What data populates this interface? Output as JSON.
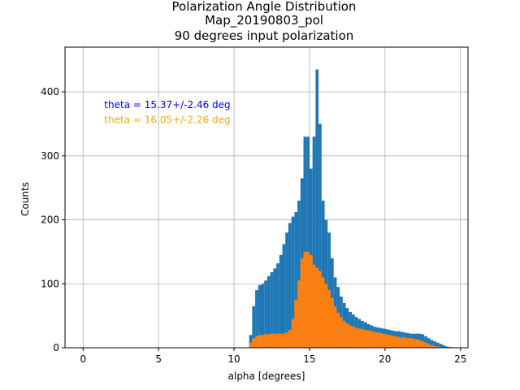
{
  "chart_data": {
    "type": "bar",
    "title_lines": [
      "Polarization Angle Distribution",
      "Map_20190803_pol",
      "90 degrees input polarization"
    ],
    "xlabel": "alpha [degrees]",
    "ylabel": "Counts",
    "xlim": [
      -1.2,
      25.5
    ],
    "ylim": [
      0,
      470
    ],
    "xticks": [
      0,
      5,
      10,
      15,
      20,
      25
    ],
    "yticks": [
      0,
      100,
      200,
      300,
      400
    ],
    "grid": true,
    "bin_width": 0.1,
    "annotations": [
      {
        "text": "theta = 15.37+/-2.46 deg",
        "color": "#0000ff",
        "x": 1.4,
        "y": 375
      },
      {
        "text": "theta = 16.05+/-2.26 deg",
        "color": "#ffa500",
        "x": 1.4,
        "y": 351
      }
    ],
    "series": [
      {
        "color": "#1f77b4",
        "points": [
          [
            11.1,
            20
          ],
          [
            11.3,
            65
          ],
          [
            11.5,
            90
          ],
          [
            11.7,
            98
          ],
          [
            11.9,
            100
          ],
          [
            12.1,
            105
          ],
          [
            12.3,
            112
          ],
          [
            12.5,
            118
          ],
          [
            12.7,
            124
          ],
          [
            12.9,
            132
          ],
          [
            13.1,
            145
          ],
          [
            13.3,
            162
          ],
          [
            13.5,
            180
          ],
          [
            13.7,
            195
          ],
          [
            13.9,
            205
          ],
          [
            14.1,
            212
          ],
          [
            14.3,
            230
          ],
          [
            14.5,
            265
          ],
          [
            14.7,
            330
          ],
          [
            14.9,
            330
          ],
          [
            15.1,
            280
          ],
          [
            15.3,
            330
          ],
          [
            15.5,
            435
          ],
          [
            15.7,
            350
          ],
          [
            15.9,
            230
          ],
          [
            16.1,
            200
          ],
          [
            16.3,
            180
          ],
          [
            16.5,
            140
          ],
          [
            16.7,
            110
          ],
          [
            16.9,
            95
          ],
          [
            17.1,
            80
          ],
          [
            17.3,
            70
          ],
          [
            17.5,
            62
          ],
          [
            17.7,
            56
          ],
          [
            17.9,
            52
          ],
          [
            18.1,
            48
          ],
          [
            18.3,
            45
          ],
          [
            18.5,
            42
          ],
          [
            18.7,
            40
          ],
          [
            18.9,
            37
          ],
          [
            19.1,
            35
          ],
          [
            19.3,
            33
          ],
          [
            19.5,
            32
          ],
          [
            19.7,
            31
          ],
          [
            19.9,
            30
          ],
          [
            20.1,
            29
          ],
          [
            20.3,
            28
          ],
          [
            20.5,
            27
          ],
          [
            20.7,
            26
          ],
          [
            20.9,
            26
          ],
          [
            21.1,
            25
          ],
          [
            21.3,
            24
          ],
          [
            21.5,
            23
          ],
          [
            21.7,
            22
          ],
          [
            21.9,
            22
          ],
          [
            22.1,
            22
          ],
          [
            22.3,
            22
          ],
          [
            22.5,
            21
          ],
          [
            22.7,
            18
          ],
          [
            22.9,
            15
          ],
          [
            23.1,
            12
          ],
          [
            23.3,
            10
          ],
          [
            23.5,
            8
          ],
          [
            23.7,
            6
          ],
          [
            23.9,
            4
          ],
          [
            24.1,
            2
          ],
          [
            24.3,
            1
          ]
        ]
      },
      {
        "color": "#ff7f0e",
        "points": [
          [
            11.1,
            8
          ],
          [
            11.3,
            15
          ],
          [
            11.5,
            18
          ],
          [
            11.7,
            20
          ],
          [
            11.9,
            20
          ],
          [
            12.1,
            21
          ],
          [
            12.3,
            21
          ],
          [
            12.5,
            22
          ],
          [
            12.7,
            22
          ],
          [
            12.9,
            22
          ],
          [
            13.1,
            22
          ],
          [
            13.3,
            22
          ],
          [
            13.5,
            24
          ],
          [
            13.7,
            28
          ],
          [
            13.9,
            45
          ],
          [
            14.1,
            75
          ],
          [
            14.3,
            105
          ],
          [
            14.5,
            140
          ],
          [
            14.7,
            150
          ],
          [
            14.9,
            150
          ],
          [
            15.1,
            145
          ],
          [
            15.3,
            130
          ],
          [
            15.5,
            125
          ],
          [
            15.7,
            120
          ],
          [
            15.9,
            110
          ],
          [
            16.1,
            100
          ],
          [
            16.3,
            90
          ],
          [
            16.5,
            78
          ],
          [
            16.7,
            65
          ],
          [
            16.9,
            55
          ],
          [
            17.1,
            48
          ],
          [
            17.3,
            42
          ],
          [
            17.5,
            38
          ],
          [
            17.7,
            35
          ],
          [
            17.9,
            33
          ],
          [
            18.1,
            31
          ],
          [
            18.3,
            30
          ],
          [
            18.5,
            29
          ],
          [
            18.7,
            28
          ],
          [
            18.9,
            27
          ],
          [
            19.1,
            26
          ],
          [
            19.3,
            25
          ],
          [
            19.5,
            24
          ],
          [
            19.7,
            23
          ],
          [
            19.9,
            22
          ],
          [
            20.1,
            21
          ],
          [
            20.3,
            20
          ],
          [
            20.5,
            19
          ],
          [
            20.7,
            18
          ],
          [
            20.9,
            17
          ],
          [
            21.1,
            16
          ],
          [
            21.3,
            16
          ],
          [
            21.5,
            15
          ],
          [
            21.7,
            15
          ],
          [
            21.9,
            14
          ],
          [
            22.1,
            13
          ],
          [
            22.3,
            12
          ],
          [
            22.5,
            10
          ],
          [
            22.7,
            8
          ],
          [
            22.9,
            6
          ],
          [
            23.1,
            4
          ],
          [
            23.3,
            3
          ],
          [
            23.5,
            2
          ],
          [
            23.7,
            1
          ]
        ]
      }
    ]
  }
}
